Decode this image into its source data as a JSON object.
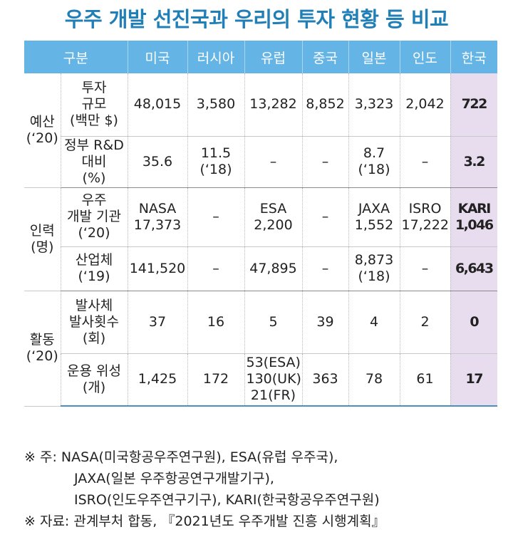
{
  "title": "우주 개발 선진국과 우리의 투자 현황 등 비교",
  "table": {
    "headers": [
      "구분",
      "미국",
      "러시아",
      "유럽",
      "중국",
      "일본",
      "인도",
      "한국"
    ],
    "groups": [
      {
        "label": "예산\n(‘20)",
        "rows": [
          {
            "label": "투자\n규모\n(백만 $)",
            "cells": [
              "48,015",
              "3,580",
              "13,282",
              "8,852",
              "3,323",
              "2,042",
              "722"
            ]
          },
          {
            "label": "정부 R&D\n대비\n(%)",
            "cells": [
              "35.6",
              "11.5\n(‘18)",
              "–",
              "–",
              "8.7\n(‘18)",
              "–",
              "3.2"
            ]
          }
        ]
      },
      {
        "label": "인력\n(명)",
        "rows": [
          {
            "label": "우주\n개발 기관\n(‘20)",
            "cells": [
              "NASA\n17,373",
              "–",
              "ESA\n2,200",
              "–",
              "JAXA\n1,552",
              "ISRO\n17,222",
              "KARI\n1,046"
            ]
          },
          {
            "label": "산업체\n(‘19)",
            "cells": [
              "141,520",
              "–",
              "47,895",
              "–",
              "8,873\n(‘18)",
              "–",
              "6,643"
            ]
          }
        ]
      },
      {
        "label": "활동\n(‘20)",
        "rows": [
          {
            "label": "발사체\n발사횟수\n(회)",
            "cells": [
              "37",
              "16",
              "5",
              "39",
              "4",
              "2",
              "0"
            ]
          },
          {
            "label": "운용 위성\n(개)",
            "cells": [
              "1,425",
              "172",
              "53(ESA)\n130(UK)\n21(FR)",
              "363",
              "78",
              "61",
              "17"
            ]
          }
        ]
      }
    ]
  },
  "notes": [
    "※ 주: NASA(미국항공우주연구원), ESA(유럽 우주국),",
    "JAXA(일본 우주항공연구개발기구),",
    "ISRO(인도우주연구기구), KARI(한국항공우주연구원)",
    "※ 자료: 관계부처 합동, 『2021년도 우주개발 진흥 시행계획』"
  ]
}
